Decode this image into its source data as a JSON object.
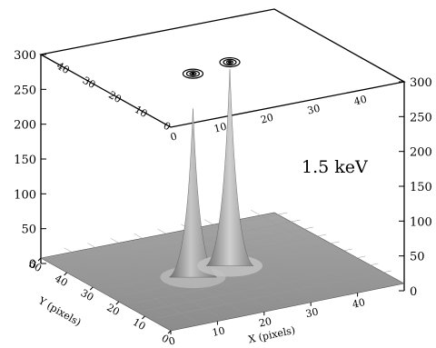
{
  "chart_data": {
    "type": "surface",
    "annotation": "1.5 keV",
    "z_ticks_left": [
      "0",
      "50",
      "100",
      "150",
      "200",
      "250",
      "300"
    ],
    "z_ticks_right": [
      "0",
      "50",
      "100",
      "150",
      "200",
      "250",
      "300"
    ],
    "zlim": [
      0,
      300
    ],
    "x_axis": {
      "label": "X (pixels)",
      "ticks": [
        "0",
        "10",
        "20",
        "30",
        "40"
      ],
      "lim": [
        0,
        50
      ]
    },
    "y_axis": {
      "label": "Y (pixels)",
      "ticks": [
        "0",
        "10",
        "20",
        "30",
        "40",
        "50"
      ],
      "lim": [
        0,
        50
      ]
    },
    "top_plane_x_ticks": [
      "0",
      "10",
      "20",
      "30",
      "40"
    ],
    "top_plane_y_ticks": [
      "0",
      "10",
      "20",
      "30",
      "40"
    ],
    "peaks": [
      {
        "x": 17,
        "y": 22,
        "z": 250
      },
      {
        "x": 26,
        "y": 24,
        "z": 290
      }
    ],
    "baseline_z": 12
  }
}
